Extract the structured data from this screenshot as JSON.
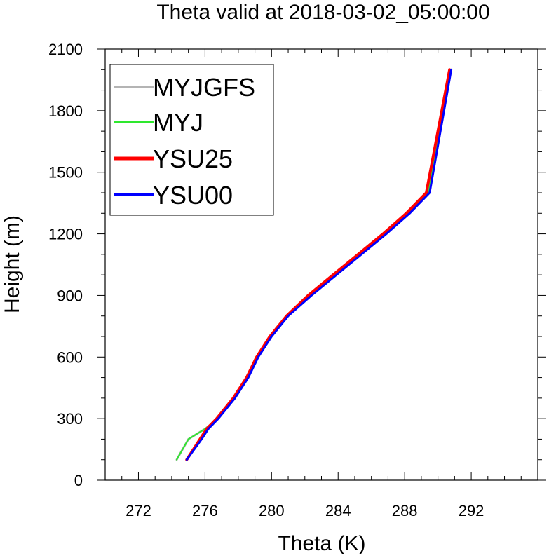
{
  "chart_data": {
    "type": "line",
    "title": "Theta valid at 2018-03-02_05:00:00",
    "xlabel": "Theta (K)",
    "ylabel": "Height (m)",
    "xlim": [
      270,
      296
    ],
    "ylim": [
      0,
      2100
    ],
    "xticks": [
      272,
      276,
      280,
      284,
      288,
      292
    ],
    "xtick_labels": [
      "272",
      "276",
      "280",
      "284",
      "288",
      "292"
    ],
    "yticks": [
      0,
      300,
      600,
      900,
      1200,
      1500,
      1800,
      2100
    ],
    "ytick_labels": [
      "0",
      "300",
      "600",
      "900",
      "1200",
      "1500",
      "1800",
      "2100"
    ],
    "grid": false,
    "legend": "top-left",
    "series": [
      {
        "name": "MYJGFS",
        "color": "#b4b4b4",
        "width": 3,
        "x": [
          274.3,
          275.0,
          276.0,
          276.8,
          277.8,
          278.6,
          279.2,
          280.0,
          281.0,
          282.3,
          283.8,
          285.3,
          286.8,
          288.2,
          289.4,
          290.7
        ],
        "y": [
          100,
          200,
          250,
          300,
          400,
          500,
          600,
          700,
          800,
          900,
          1000,
          1100,
          1200,
          1300,
          1400,
          2000
        ]
      },
      {
        "name": "MYJ",
        "color": "#2ee82e",
        "width": 2,
        "x": [
          274.3,
          275.0,
          276.0,
          276.8,
          277.8,
          278.6,
          279.2,
          280.0,
          281.0,
          282.3,
          283.8,
          285.3,
          286.8,
          288.2,
          289.4,
          290.7
        ],
        "y": [
          100,
          200,
          250,
          300,
          400,
          500,
          600,
          700,
          800,
          900,
          1000,
          1100,
          1200,
          1300,
          1400,
          2000
        ]
      },
      {
        "name": "YSU25",
        "color": "#ff0000",
        "width": 4,
        "x": [
          274.9,
          275.7,
          276.1,
          276.7,
          277.7,
          278.5,
          279.1,
          279.9,
          280.9,
          282.2,
          283.7,
          285.2,
          286.7,
          288.1,
          289.3,
          290.7
        ],
        "y": [
          100,
          200,
          250,
          300,
          400,
          500,
          600,
          700,
          800,
          900,
          1000,
          1100,
          1200,
          1300,
          1400,
          2000
        ]
      },
      {
        "name": "YSU00",
        "color": "#0000ff",
        "width": 3,
        "x": [
          274.9,
          275.8,
          276.2,
          276.8,
          277.8,
          278.6,
          279.2,
          280.0,
          281.0,
          282.4,
          283.9,
          285.4,
          286.9,
          288.3,
          289.5,
          290.8
        ],
        "y": [
          100,
          200,
          250,
          300,
          400,
          500,
          600,
          700,
          800,
          900,
          1000,
          1100,
          1200,
          1300,
          1400,
          2000
        ]
      }
    ]
  }
}
